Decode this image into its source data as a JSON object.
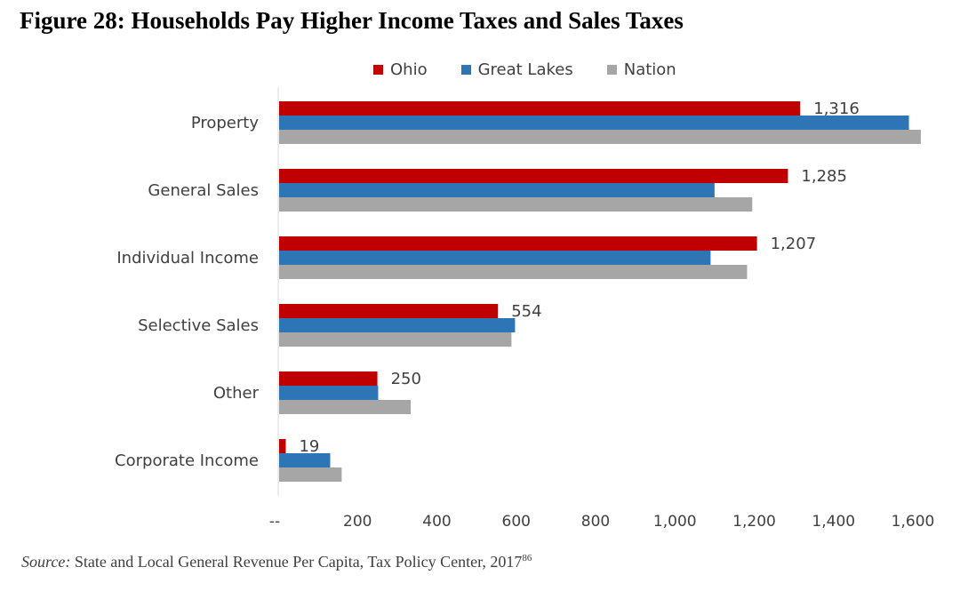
{
  "figure": {
    "title": "Figure 28: Households Pay Higher Income Taxes and Sales Taxes"
  },
  "source": {
    "label": "Source:",
    "text": "State and Local General Revenue Per Capita, Tax Policy Center, 2017",
    "footnote": "86"
  },
  "colors": {
    "ohio": "#c00000",
    "great_lakes": "#2e75b6",
    "nation": "#a6a6a6",
    "axis": "#d9d9d9",
    "text": "#404040"
  },
  "chart_data": {
    "type": "bar",
    "orientation": "horizontal",
    "title": "",
    "xlabel": "",
    "ylabel": "",
    "categories": [
      "Property",
      "General Sales",
      "Individual Income",
      "Selective Sales",
      "Other",
      "Corporate Income"
    ],
    "series": [
      {
        "name": "Ohio",
        "values": [
          1316,
          1285,
          1207,
          554,
          250,
          19
        ]
      },
      {
        "name": "Great Lakes",
        "values": [
          1590,
          1100,
          1090,
          597,
          252,
          131
        ]
      },
      {
        "name": "Nation",
        "values": [
          1620,
          1195,
          1182,
          588,
          334,
          160
        ]
      }
    ],
    "data_labels": [
      "1,316",
      "1,285",
      "1,207",
      "554",
      "250",
      "19"
    ],
    "xlim": [
      0,
      1600
    ],
    "xticks": [
      0,
      200,
      400,
      600,
      800,
      1000,
      1200,
      1400,
      1600
    ],
    "xtick_labels": [
      "--",
      "200",
      "400",
      "600",
      "800",
      "1,000",
      "1,200",
      "1,400",
      "1,600"
    ],
    "grid": false,
    "legend_position": "top-center"
  }
}
